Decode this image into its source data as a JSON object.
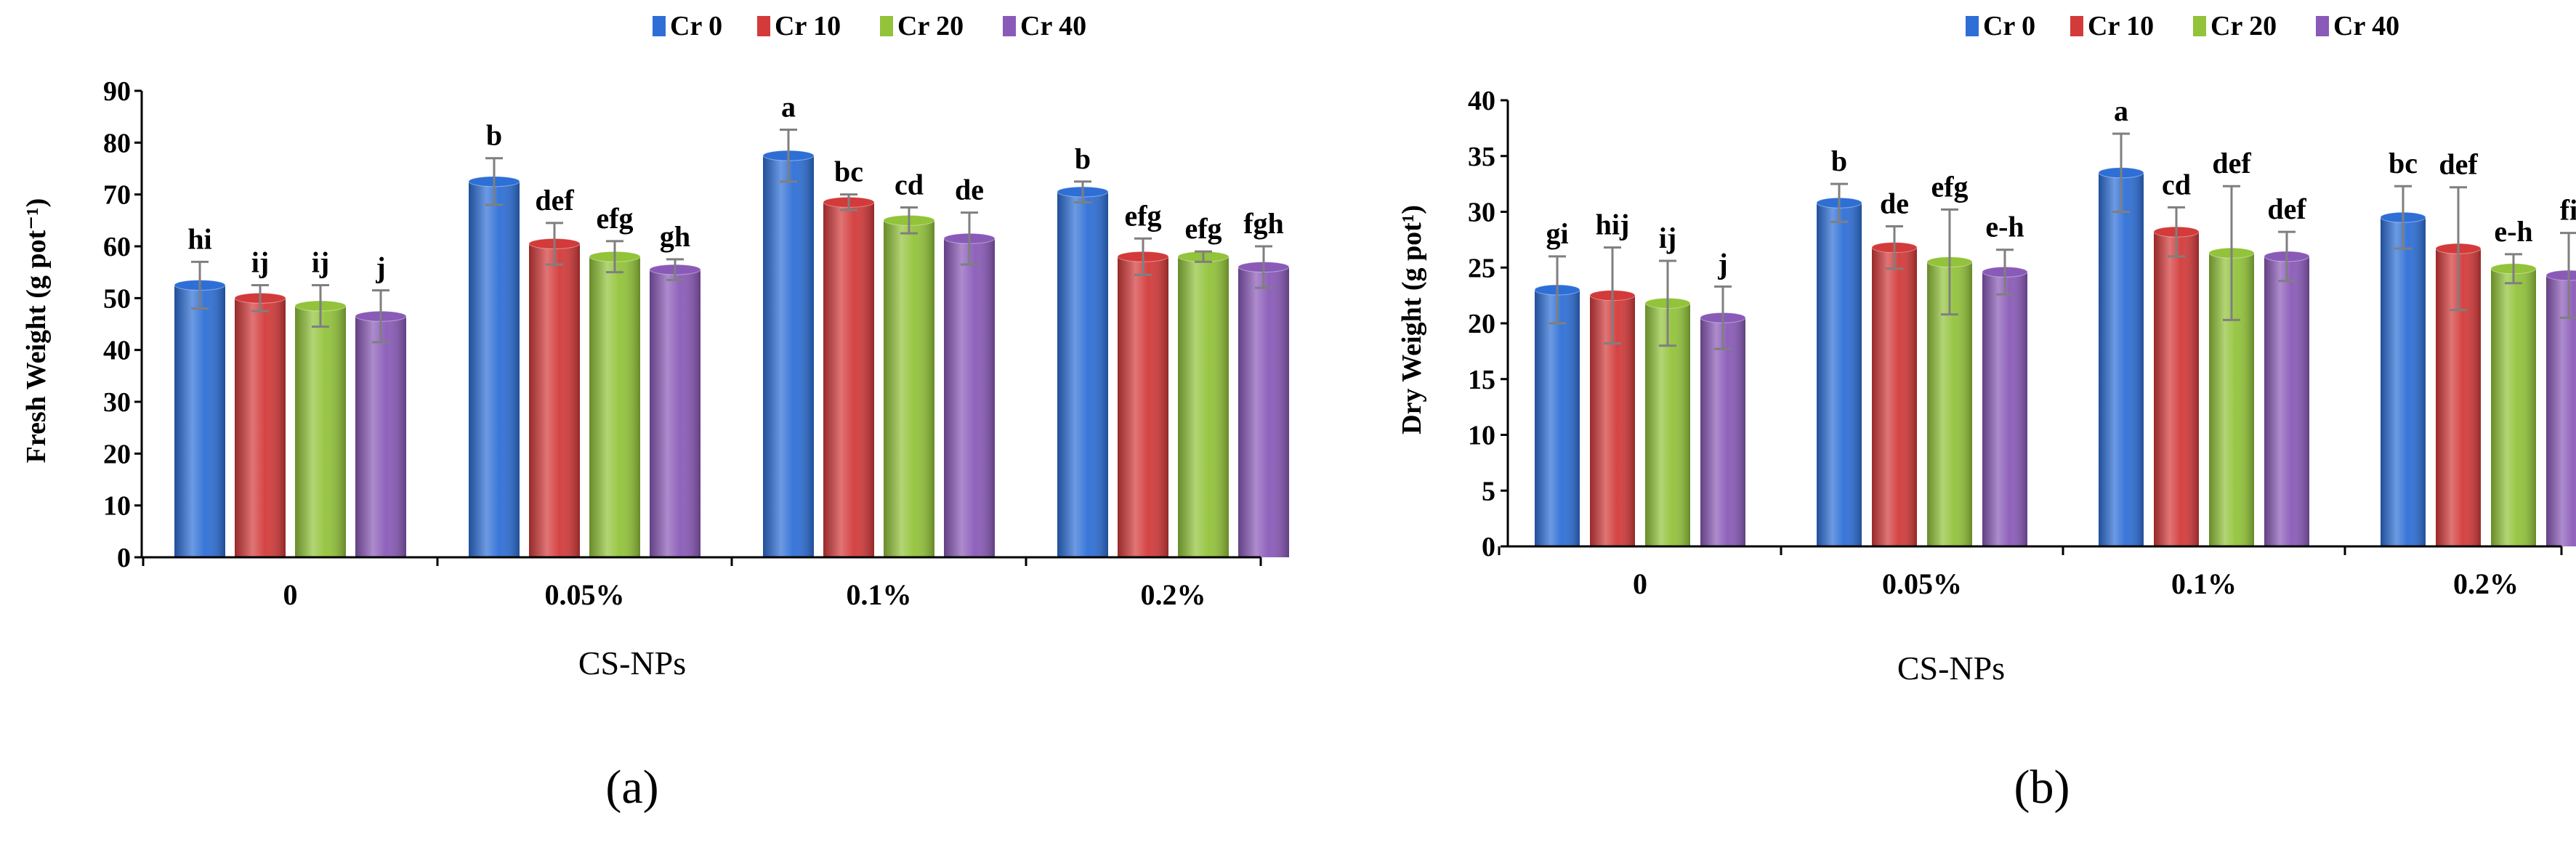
{
  "colors": {
    "Cr 0": "#2e6fd6",
    "Cr 10": "#d33a3a",
    "Cr 20": "#92c33a",
    "Cr 40": "#8a5ab8",
    "error": "#7f7f7f",
    "axis": "#000000"
  },
  "chart_data": [
    {
      "type": "bar",
      "panel_label": "(a)",
      "categories": [
        "0",
        "0.05%",
        "0.1%",
        "0.2%"
      ],
      "xlabel": "CS-NPs",
      "ylabel": "Fresh Weight (g pot⁻¹)",
      "ylim": [
        0,
        90
      ],
      "yticks": [
        0,
        10,
        20,
        30,
        40,
        50,
        60,
        70,
        80,
        90
      ],
      "grid": false,
      "legend_position": "top-center",
      "series": [
        {
          "name": "Cr 0",
          "values": [
            52.5,
            72.5,
            77.5,
            70.5
          ],
          "errors": [
            4.5,
            4.5,
            5.0,
            2.0
          ],
          "letters": [
            "hi",
            "b",
            "a",
            "b"
          ]
        },
        {
          "name": "Cr 10",
          "values": [
            50.0,
            60.5,
            68.5,
            58.0
          ],
          "errors": [
            2.5,
            4.0,
            1.5,
            3.5
          ],
          "letters": [
            "ij",
            "def",
            "bc",
            "efg"
          ]
        },
        {
          "name": "Cr 20",
          "values": [
            48.5,
            58.0,
            65.0,
            58.0
          ],
          "errors": [
            4.0,
            3.0,
            2.5,
            1.0
          ],
          "letters": [
            "ij",
            "efg",
            "cd",
            "efg"
          ]
        },
        {
          "name": "Cr 40",
          "values": [
            46.5,
            55.5,
            61.5,
            56.0
          ],
          "errors": [
            5.0,
            2.0,
            5.0,
            4.0
          ],
          "letters": [
            "j",
            "gh",
            "de",
            "fgh"
          ]
        }
      ]
    },
    {
      "type": "bar",
      "panel_label": "(b)",
      "categories": [
        "0",
        "0.05%",
        "0.1%",
        "0.2%"
      ],
      "xlabel": "CS-NPs",
      "ylabel": "Dry Weight (g pot¹)",
      "ylim": [
        0,
        40
      ],
      "yticks": [
        0,
        5,
        10,
        15,
        20,
        25,
        30,
        35,
        40
      ],
      "grid": false,
      "legend_position": "top-center",
      "series": [
        {
          "name": "Cr 0",
          "values": [
            23.0,
            30.8,
            33.5,
            29.5
          ],
          "errors": [
            3.0,
            1.7,
            3.5,
            2.8
          ],
          "letters": [
            "gi",
            "b",
            "a",
            "bc"
          ]
        },
        {
          "name": "Cr 10",
          "values": [
            22.5,
            26.8,
            28.2,
            26.7
          ],
          "errors": [
            4.3,
            1.9,
            2.2,
            5.5
          ],
          "letters": [
            "hij",
            "de",
            "cd",
            "def"
          ]
        },
        {
          "name": "Cr 20",
          "values": [
            21.8,
            25.5,
            26.3,
            24.9
          ],
          "errors": [
            3.8,
            4.7,
            6.0,
            1.3
          ],
          "letters": [
            "ij",
            "efg",
            "def",
            "e-h"
          ]
        },
        {
          "name": "Cr 40",
          "values": [
            20.5,
            24.6,
            26.0,
            24.3
          ],
          "errors": [
            2.8,
            2.0,
            2.2,
            3.8
          ],
          "letters": [
            "j",
            "e-h",
            "def",
            "fi"
          ]
        }
      ]
    }
  ]
}
